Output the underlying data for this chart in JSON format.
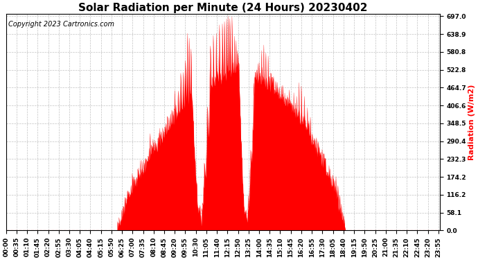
{
  "title": "Solar Radiation per Minute (24 Hours) 20230402",
  "copyright_text": "Copyright 2023 Cartronics.com",
  "ylabel": "Radiation (W/m2)",
  "ylabel_color": "#ff0000",
  "background_color": "#ffffff",
  "fill_color": "#ff0000",
  "line_color": "#ff0000",
  "grid_color": "#bbbbbb",
  "yticks": [
    0.0,
    58.1,
    116.2,
    174.2,
    232.3,
    290.4,
    348.5,
    406.6,
    464.7,
    522.8,
    580.8,
    638.9,
    697.0
  ],
  "ymax": 697.0,
  "ymin": 0.0,
  "total_minutes": 1440,
  "title_fontsize": 11,
  "axis_fontsize": 8,
  "tick_fontsize": 6.5,
  "xtick_interval_minutes": 35,
  "copyright_fontsize": 7
}
